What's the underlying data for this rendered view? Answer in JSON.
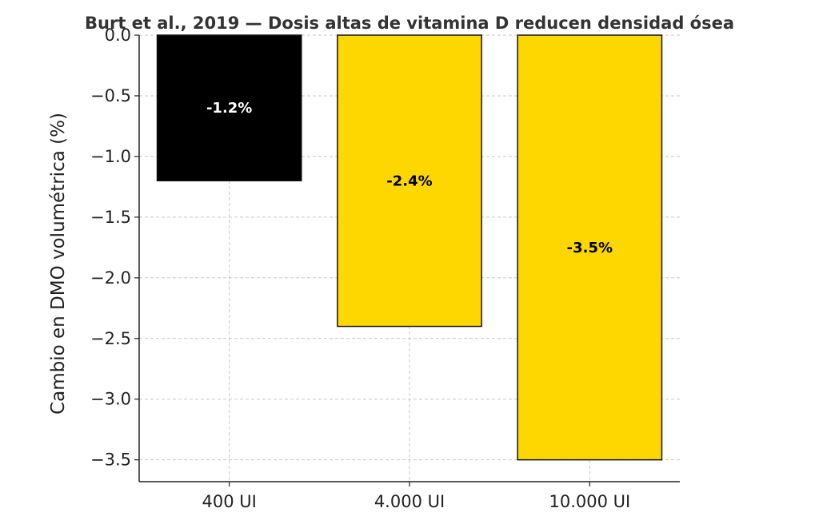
{
  "chart_data": {
    "type": "bar",
    "title": "Burt et al., 2019 — Dosis altas de vitamina D reducen densidad ósea",
    "xlabel": "",
    "ylabel": "Cambio en DMO volumétrica (%)",
    "categories": [
      "400 UI",
      "4.000 UI",
      "10.000 UI"
    ],
    "values": [
      -1.2,
      -2.4,
      -3.5
    ],
    "data_labels": [
      "-1.2%",
      "-2.4%",
      "-3.5%"
    ],
    "bar_colors": [
      "#000000",
      "#FFD700",
      "#FFD700"
    ],
    "label_colors": [
      "#ffffff",
      "#000000",
      "#000000"
    ],
    "ylim": [
      -3.68,
      0.0
    ],
    "yticks": [
      0.0,
      -0.5,
      -1.0,
      -1.5,
      -2.0,
      -2.5,
      -3.0,
      -3.5
    ],
    "ytick_labels": [
      "0.0",
      "−0.5",
      "−1.0",
      "−1.5",
      "−2.0",
      "−2.5",
      "−3.0",
      "−3.5"
    ],
    "grid": true
  }
}
